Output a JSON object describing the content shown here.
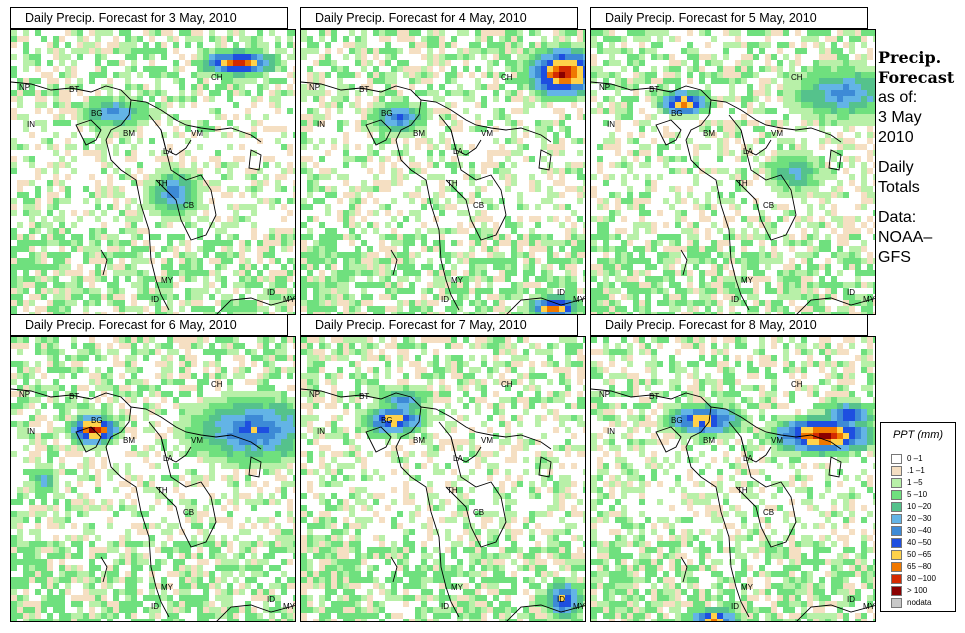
{
  "panels": [
    {
      "title": "Daily Precip. Forecast for  3 May, 2010"
    },
    {
      "title": "Daily Precip. Forecast for  4 May, 2010"
    },
    {
      "title": "Daily Precip. Forecast for  5 May, 2010"
    },
    {
      "title": "Daily Precip. Forecast for  6 May, 2010"
    },
    {
      "title": "Daily Precip. Forecast for  7 May, 2010"
    },
    {
      "title": "Daily Precip. Forecast for  8 May, 2010"
    }
  ],
  "map_labels": [
    "NP",
    "BT",
    "BG",
    "IN",
    "BM",
    "CH",
    "VM",
    "LA",
    "TH",
    "CB",
    "MY",
    "ID",
    "ID",
    "MY"
  ],
  "side": {
    "line1": "Precip.",
    "line2": "Forecast",
    "line3": "as of:",
    "line4": "3 May",
    "line5": "2010",
    "line6": "Daily",
    "line7": "Totals",
    "line8": "Data:",
    "line9": "NOAA–",
    "line10": "GFS"
  },
  "legend": {
    "title": "PPT (mm)",
    "items": [
      {
        "label": "0 –1",
        "color": "#ffffff"
      },
      {
        "label": ".1 –1",
        "color": "#f5dfc2"
      },
      {
        "label": "1 –5",
        "color": "#b8f0a8"
      },
      {
        "label": "5 –10",
        "color": "#6fe07e"
      },
      {
        "label": "10 –20",
        "color": "#55c28c"
      },
      {
        "label": "20 –30",
        "color": "#63b4e6"
      },
      {
        "label": "30 –40",
        "color": "#3d8ad6"
      },
      {
        "label": "40 –50",
        "color": "#1e4fe0"
      },
      {
        "label": "50 –65",
        "color": "#ffd24a"
      },
      {
        "label": "65 –80",
        "color": "#f07800"
      },
      {
        "label": "80 –100",
        "color": "#d42a00"
      },
      {
        "label": "> 100",
        "color": "#8a0000"
      },
      {
        "label": "nodata",
        "color": "#c8c8c8"
      }
    ]
  }
}
